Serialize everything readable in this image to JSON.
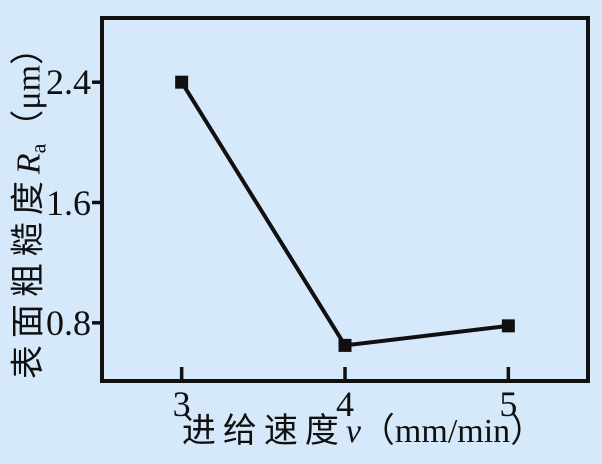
{
  "chart_data": {
    "type": "line",
    "x": [
      3,
      4,
      5
    ],
    "y": [
      2.4,
      0.65,
      0.78
    ],
    "x_ticks": [
      3,
      4,
      5
    ],
    "y_ticks": [
      0.8,
      1.6,
      2.4
    ],
    "xlim": [
      2.5,
      5.5
    ],
    "ylim": [
      0.4,
      2.84
    ],
    "xlabel": "进给速度v（mm/min）",
    "xlabel_main": "进给速度",
    "xlabel_var": "v",
    "xlabel_unit": "（mm/min）",
    "ylabel": "表面粗糙度Ra（μm）",
    "ylabel_main": "表面粗糙度",
    "ylabel_var": "R",
    "ylabel_sub": "a",
    "ylabel_unit": "（μm）",
    "title": "",
    "legend_position": "none",
    "grid": false,
    "marker": "square",
    "marker_size": 13,
    "line_width": 4,
    "series_color": "#101010",
    "background_color": "#d6e9fb"
  }
}
